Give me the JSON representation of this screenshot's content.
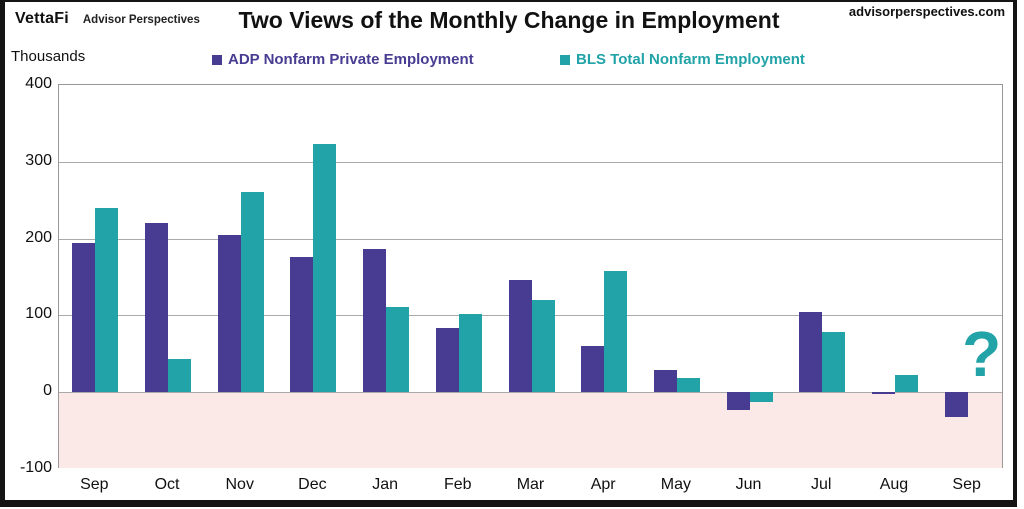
{
  "header": {
    "logo_primary": "VettaFi",
    "logo_secondary": "Advisor Perspectives",
    "title": "Two Views of the Monthly Change in Employment",
    "website": "advisorperspectives.com"
  },
  "axis_unit_label": "Thousands",
  "colors": {
    "adp_purple": "#473c92",
    "bls_teal": "#21a3a7",
    "negative_region_pink": "#fbe9e8",
    "gridline_gray": "#aaaaaa",
    "frame_black": "#141414"
  },
  "chart_data": {
    "type": "bar",
    "title": "Two Views of the Monthly Change in Employment",
    "ylabel": "Thousands",
    "categories": [
      "Sep",
      "Oct",
      "Nov",
      "Dec",
      "Jan",
      "Feb",
      "Mar",
      "Apr",
      "May",
      "Jun",
      "Jul",
      "Aug",
      "Sep"
    ],
    "series": [
      {
        "name": "ADP Nonfarm Private Employment",
        "key": "adp",
        "color": "#473c92",
        "values": [
          194,
          220,
          205,
          176,
          186,
          84,
          146,
          60,
          29,
          -23,
          104,
          -3,
          -32
        ]
      },
      {
        "name": "BLS Total Nonfarm Employment",
        "key": "bls",
        "color": "#21a3a7",
        "values": [
          240,
          43,
          261,
          323,
          111,
          102,
          120,
          158,
          19,
          -13,
          79,
          22,
          null
        ]
      }
    ],
    "ylim": [
      -100,
      400
    ],
    "yticks": [
      400,
      300,
      200,
      100,
      0,
      -100
    ],
    "grid": true,
    "legend_position": "top",
    "negative_region_shaded": true,
    "missing_value_marker": "?",
    "missing_value_at": {
      "series": "BLS Total Nonfarm Employment",
      "category_index": 12
    }
  }
}
